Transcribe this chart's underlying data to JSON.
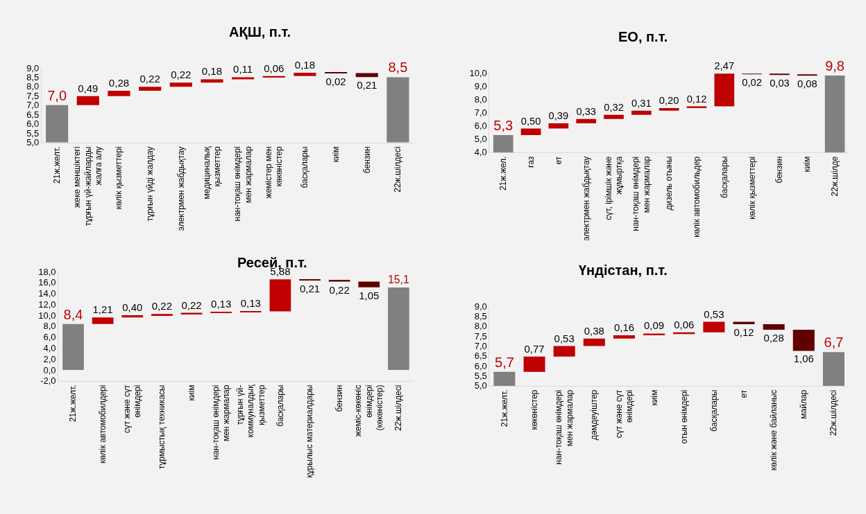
{
  "chart_data": [
    {
      "type": "bar",
      "title": "АҚШ, п.т.",
      "categories": [
        "21ж.желт.",
        "жеке меншіктегі тұрғын үй-жайларды жалға алу",
        "көлік қызметтері",
        "тұрғын үйді жалдау",
        "электрмен жабдықтау",
        "медициналық қызметтер",
        "нан-тоқаш өнімдері мен жармалар",
        "жемістер мен көкөністер",
        "басқалары",
        "киім",
        "бензин",
        "22ж.шілдесі"
      ],
      "values": [
        7.0,
        0.49,
        0.28,
        0.22,
        0.22,
        0.18,
        0.11,
        0.06,
        0.18,
        -0.02,
        -0.21,
        8.5
      ],
      "base": [
        null,
        7.0,
        7.49,
        7.77,
        7.99,
        8.21,
        8.39,
        8.5,
        8.56,
        8.74,
        8.72,
        null
      ],
      "colors": [
        "#808080",
        "#c00000",
        "#c00000",
        "#c00000",
        "#c00000",
        "#c00000",
        "#c00000",
        "#c00000",
        "#c00000",
        "#600000",
        "#600000",
        "#808080"
      ],
      "value_labels": [
        "7,0",
        "0,49",
        "0,28",
        "0,22",
        "0,22",
        "0,18",
        "0,11",
        "0,06",
        "0,18",
        "0,02",
        "0,21",
        "8,5"
      ],
      "ylim": [
        5,
        9
      ],
      "yticks": [
        {
          "value": 5,
          "label": "5,0"
        },
        {
          "value": 5.5,
          "label": "5,5"
        },
        {
          "value": 6,
          "label": "6,0"
        },
        {
          "value": 6.5,
          "label": "6,5"
        },
        {
          "value": 7,
          "label": "7,0"
        },
        {
          "value": 7.5,
          "label": "7,5"
        },
        {
          "value": 8,
          "label": "8,0"
        },
        {
          "value": 8.5,
          "label": "8,5"
        },
        {
          "value": 9,
          "label": "9,0"
        }
      ],
      "grid": false
    },
    {
      "type": "bar",
      "title": "ЕО, п.т.",
      "categories": [
        "21ж.жел.",
        "газ",
        "ет",
        "электрмен жабдықтау",
        "сүт, ірімшік және жұмыртқа",
        "нан-тоқаш өнімдері мен жармалар",
        "дизель отыны",
        "көлік автомобильдер",
        "басқалары",
        "көлік қызметтері",
        "бензин",
        "киім",
        "22ж.шілде"
      ],
      "values": [
        5.3,
        0.5,
        0.39,
        0.33,
        0.32,
        0.31,
        0.2,
        0.12,
        2.47,
        -0.02,
        -0.03,
        -0.08,
        9.8
      ],
      "base": [
        null,
        5.3,
        5.8,
        6.19,
        6.52,
        6.84,
        7.15,
        7.35,
        7.47,
        9.94,
        9.92,
        9.89,
        null
      ],
      "colors": [
        "#808080",
        "#c00000",
        "#c00000",
        "#c00000",
        "#c00000",
        "#c00000",
        "#c00000",
        "#c00000",
        "#c00000",
        "#600000",
        "#600000",
        "#600000",
        "#808080"
      ],
      "value_labels": [
        "5,3",
        "0,50",
        "0,39",
        "0,33",
        "0,32",
        "0,31",
        "0,20",
        "0,12",
        "2,47",
        "0,02",
        "0,03",
        "0,08",
        "9,8"
      ],
      "ylim": [
        4,
        10
      ],
      "yticks": [
        {
          "value": 4,
          "label": "4,0"
        },
        {
          "value": 5,
          "label": "5,0"
        },
        {
          "value": 6,
          "label": "6,0"
        },
        {
          "value": 7,
          "label": "7,0"
        },
        {
          "value": 8,
          "label": "8,0"
        },
        {
          "value": 9,
          "label": "9,0"
        },
        {
          "value": 10,
          "label": "10,0"
        }
      ],
      "grid": false
    },
    {
      "type": "bar",
      "title": "Ресей, п.т.",
      "categories": [
        "21ж.желт.",
        "көлік автомобилдері",
        "сүт және сүт өнімдері",
        "тұрмыстық техникасы",
        "киім",
        "нан-тоқаш өнімдері мен жармалар",
        "тұрғын үй-коммуналдық қызметтер",
        "басқалары",
        "құрылыс материалдары",
        "бензин",
        "жеміс-көкөніс өнімдері (көкөністер)",
        "22ж.шілдесі"
      ],
      "values": [
        8.4,
        1.21,
        0.4,
        0.22,
        0.22,
        0.13,
        0.13,
        5.88,
        -0.21,
        -0.22,
        -1.05,
        15.1
      ],
      "base": [
        null,
        8.4,
        9.61,
        10.01,
        10.23,
        10.45,
        10.58,
        10.71,
        16.59,
        16.38,
        16.16,
        null
      ],
      "colors": [
        "#808080",
        "#c00000",
        "#c00000",
        "#c00000",
        "#c00000",
        "#c00000",
        "#c00000",
        "#c00000",
        "#600000",
        "#600000",
        "#600000",
        "#808080"
      ],
      "value_labels": [
        "8,4",
        "1,21",
        "0,40",
        "0,22",
        "0,22",
        "0,13",
        "0,13",
        "5,88",
        "0,21",
        "0,22",
        "1,05",
        "15,1"
      ],
      "ylim": [
        -2,
        18
      ],
      "yticks": [
        {
          "value": -2,
          "label": "-2,0"
        },
        {
          "value": 0,
          "label": "0,0"
        },
        {
          "value": 2,
          "label": "2,0"
        },
        {
          "value": 4,
          "label": "4,0"
        },
        {
          "value": 6,
          "label": "6,0"
        },
        {
          "value": 8,
          "label": "8,0"
        },
        {
          "value": 10,
          "label": "10,0"
        },
        {
          "value": 12,
          "label": "12,0"
        },
        {
          "value": 14,
          "label": "14,0"
        },
        {
          "value": 16,
          "label": "16,0"
        },
        {
          "value": 18,
          "label": "18,0"
        }
      ],
      "grid": false
    },
    {
      "type": "bar",
      "title": "Үндістан, п.т.",
      "categories": [
        "21ж.желт.",
        "көкөністер",
        "нан-тоқаш өнімдері мен жармалар",
        "дәмдеуіштер",
        "сүт және сүт өнімдері",
        "киім",
        "отын өнімдері",
        "басқалары",
        "ет",
        "көлік және байланыс",
        "майлар",
        "22ж.шілдесі"
      ],
      "values": [
        5.7,
        0.77,
        0.53,
        0.38,
        0.16,
        0.09,
        0.06,
        0.53,
        -0.12,
        -0.28,
        -1.06,
        6.7
      ],
      "base": [
        null,
        5.7,
        6.47,
        7.0,
        7.38,
        7.54,
        7.63,
        7.69,
        8.22,
        8.1,
        7.82,
        null
      ],
      "colors": [
        "#808080",
        "#c00000",
        "#c00000",
        "#c00000",
        "#c00000",
        "#c00000",
        "#c00000",
        "#c00000",
        "#600000",
        "#600000",
        "#600000",
        "#808080"
      ],
      "value_labels": [
        "5,7",
        "0,77",
        "0,53",
        "0,38",
        "0,16",
        "0,09",
        "0,06",
        "0,53",
        "0,12",
        "0,28",
        "1,06",
        "6,7"
      ],
      "ylim": [
        5,
        9
      ],
      "yticks": [
        {
          "value": 5,
          "label": "5,0"
        },
        {
          "value": 5.5,
          "label": "5,5"
        },
        {
          "value": 6,
          "label": "6,0"
        },
        {
          "value": 6.5,
          "label": "6,5"
        },
        {
          "value": 7,
          "label": "7,0"
        },
        {
          "value": 7.5,
          "label": "7,5"
        },
        {
          "value": 8,
          "label": "8,0"
        },
        {
          "value": 8.5,
          "label": "8,5"
        },
        {
          "value": 9,
          "label": "9,0"
        }
      ],
      "grid": false
    }
  ]
}
